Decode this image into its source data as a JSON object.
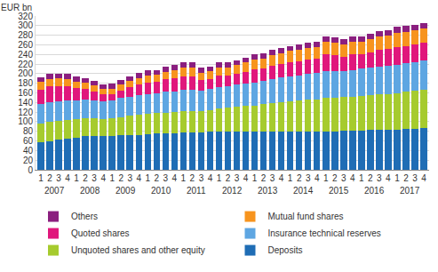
{
  "chart_data": {
    "type": "bar",
    "stacked": true,
    "y_label": "EUR bn",
    "categories": [
      "1",
      "2",
      "3",
      "4",
      "1",
      "2",
      "3",
      "4",
      "1",
      "2",
      "3",
      "4",
      "1",
      "2",
      "3",
      "4",
      "1",
      "2",
      "3",
      "4",
      "1",
      "2",
      "3",
      "4",
      "1",
      "2",
      "3",
      "4",
      "1",
      "2",
      "3",
      "4",
      "1",
      "2",
      "3",
      "4",
      "1",
      "2",
      "3",
      "4",
      "1",
      "2",
      "3",
      "4"
    ],
    "year_labels": [
      "2007",
      "2008",
      "2009",
      "2010",
      "2011",
      "2012",
      "2013",
      "2014",
      "2015",
      "2016",
      "2017"
    ],
    "ylim": [
      0,
      320
    ],
    "yticks": [
      0,
      20,
      40,
      60,
      80,
      100,
      120,
      140,
      160,
      180,
      200,
      220,
      240,
      260,
      280,
      300,
      320
    ],
    "grid": true,
    "legend": "bottom",
    "series": [
      {
        "name": "Deposits",
        "color": "#1f6db5",
        "values": [
          57,
          60,
          62,
          64,
          67,
          70,
          71,
          71,
          71,
          72,
          72,
          73,
          74,
          75,
          75,
          76,
          77,
          78,
          78,
          79,
          80,
          80,
          80,
          80,
          79,
          79,
          80,
          80,
          79,
          79,
          80,
          80,
          80,
          80,
          81,
          81,
          82,
          83,
          83,
          83,
          84,
          85,
          86,
          87
        ]
      },
      {
        "name": "Unquoted shares and other equity",
        "color": "#a6cb2e",
        "values": [
          40,
          40,
          40,
          39,
          38,
          37,
          36,
          35,
          36,
          38,
          40,
          41,
          42,
          43,
          44,
          44,
          45,
          45,
          44,
          45,
          47,
          49,
          51,
          53,
          55,
          57,
          59,
          61,
          63,
          65,
          66,
          67,
          69,
          70,
          70,
          71,
          72,
          73,
          74,
          75,
          76,
          77,
          78,
          79
        ]
      },
      {
        "name": "Insurance technical reserves",
        "color": "#5ea6e2",
        "values": [
          40,
          41,
          41,
          41,
          40,
          39,
          38,
          37,
          38,
          39,
          40,
          41,
          42,
          42,
          43,
          43,
          44,
          44,
          43,
          44,
          45,
          45,
          46,
          47,
          48,
          49,
          50,
          51,
          52,
          53,
          53,
          54,
          56,
          56,
          55,
          56,
          57,
          57,
          58,
          58,
          59,
          60,
          60,
          61
        ]
      },
      {
        "name": "Quoted shares",
        "color": "#e0177c",
        "values": [
          30,
          32,
          31,
          30,
          25,
          22,
          18,
          14,
          13,
          16,
          20,
          22,
          24,
          23,
          26,
          28,
          29,
          28,
          21,
          21,
          24,
          22,
          23,
          24,
          27,
          26,
          28,
          29,
          30,
          29,
          30,
          31,
          35,
          33,
          29,
          32,
          30,
          32,
          34,
          35,
          37,
          36,
          36,
          37
        ]
      },
      {
        "name": "Mutual fund shares",
        "color": "#f7941e",
        "values": [
          16,
          16,
          16,
          15,
          14,
          13,
          12,
          11,
          11,
          12,
          13,
          14,
          15,
          15,
          16,
          17,
          18,
          18,
          16,
          16,
          17,
          17,
          18,
          19,
          20,
          21,
          22,
          22,
          23,
          23,
          24,
          24,
          26,
          26,
          25,
          26,
          26,
          27,
          28,
          28,
          29,
          29,
          30,
          30
        ]
      },
      {
        "name": "Others",
        "color": "#8b1f7f",
        "values": [
          10,
          10,
          10,
          10,
          10,
          10,
          10,
          10,
          10,
          10,
          10,
          10,
          10,
          10,
          10,
          10,
          11,
          11,
          10,
          10,
          10,
          10,
          10,
          10,
          11,
          11,
          11,
          11,
          11,
          11,
          11,
          11,
          11,
          11,
          11,
          11,
          11,
          11,
          11,
          11,
          12,
          12,
          12,
          12
        ]
      }
    ]
  }
}
